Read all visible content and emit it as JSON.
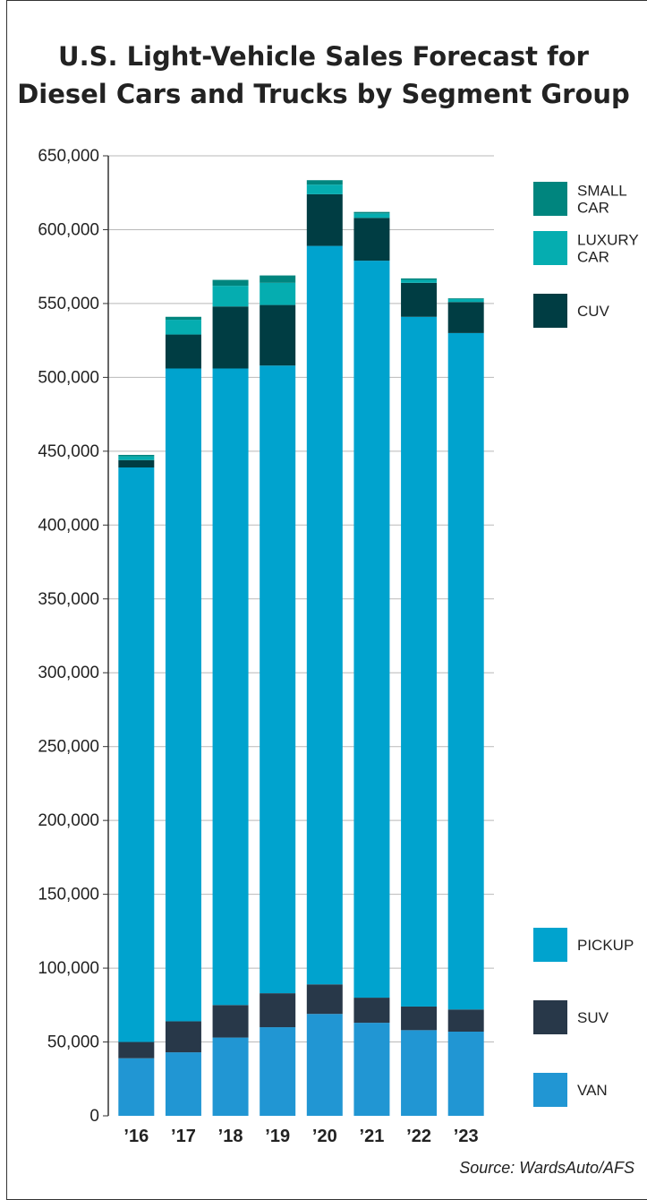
{
  "chart_data": {
    "type": "bar",
    "stacked": true,
    "title_lines": [
      "U.S. Light-Vehicle Sales Forecast for",
      "Diesel Cars and Trucks by Segment Group"
    ],
    "source": "Source: WardsAuto/AFS",
    "categories": [
      "’16",
      "’17",
      "’18",
      "’19",
      "’20",
      "’21",
      "’22",
      "’23"
    ],
    "y_ticks": [
      "0",
      "50,000",
      "100,000",
      "150,000",
      "200,000",
      "250,000",
      "300,000",
      "350,000",
      "400,000",
      "450,000",
      "500,000",
      "550,000",
      "600,000",
      "650,000"
    ],
    "ylim": [
      0,
      650000
    ],
    "grid": true,
    "series": [
      {
        "name": "VAN",
        "legend_lines": [
          "VAN"
        ],
        "color": "#2196d3",
        "values": [
          39000,
          43000,
          53000,
          60000,
          69000,
          63000,
          58000,
          57000
        ]
      },
      {
        "name": "SUV",
        "legend_lines": [
          "SUV"
        ],
        "color": "#283849",
        "values": [
          11000,
          21000,
          22000,
          23000,
          20000,
          17000,
          16000,
          15000
        ]
      },
      {
        "name": "PICKUP",
        "legend_lines": [
          "PICKUP"
        ],
        "color": "#00a3ce",
        "values": [
          389000,
          442000,
          431000,
          425000,
          500000,
          499000,
          467000,
          458000
        ]
      },
      {
        "name": "CUV",
        "legend_lines": [
          "CUV"
        ],
        "color": "#003d43",
        "values": [
          5000,
          23000,
          42000,
          41000,
          35000,
          29000,
          23000,
          21000
        ]
      },
      {
        "name": "LUXURY CAR",
        "legend_lines": [
          "LUXURY",
          "CAR"
        ],
        "color": "#05adb0",
        "values": [
          2500,
          10000,
          14000,
          15000,
          6500,
          3000,
          2000,
          2000
        ]
      },
      {
        "name": "SMALL CAR",
        "legend_lines": [
          "SMALL",
          "CAR"
        ],
        "color": "#00857e",
        "values": [
          1000,
          2000,
          4000,
          5000,
          3000,
          1000,
          1000,
          500
        ]
      }
    ],
    "legend_order": [
      5,
      4,
      3,
      2,
      1,
      0
    ]
  }
}
